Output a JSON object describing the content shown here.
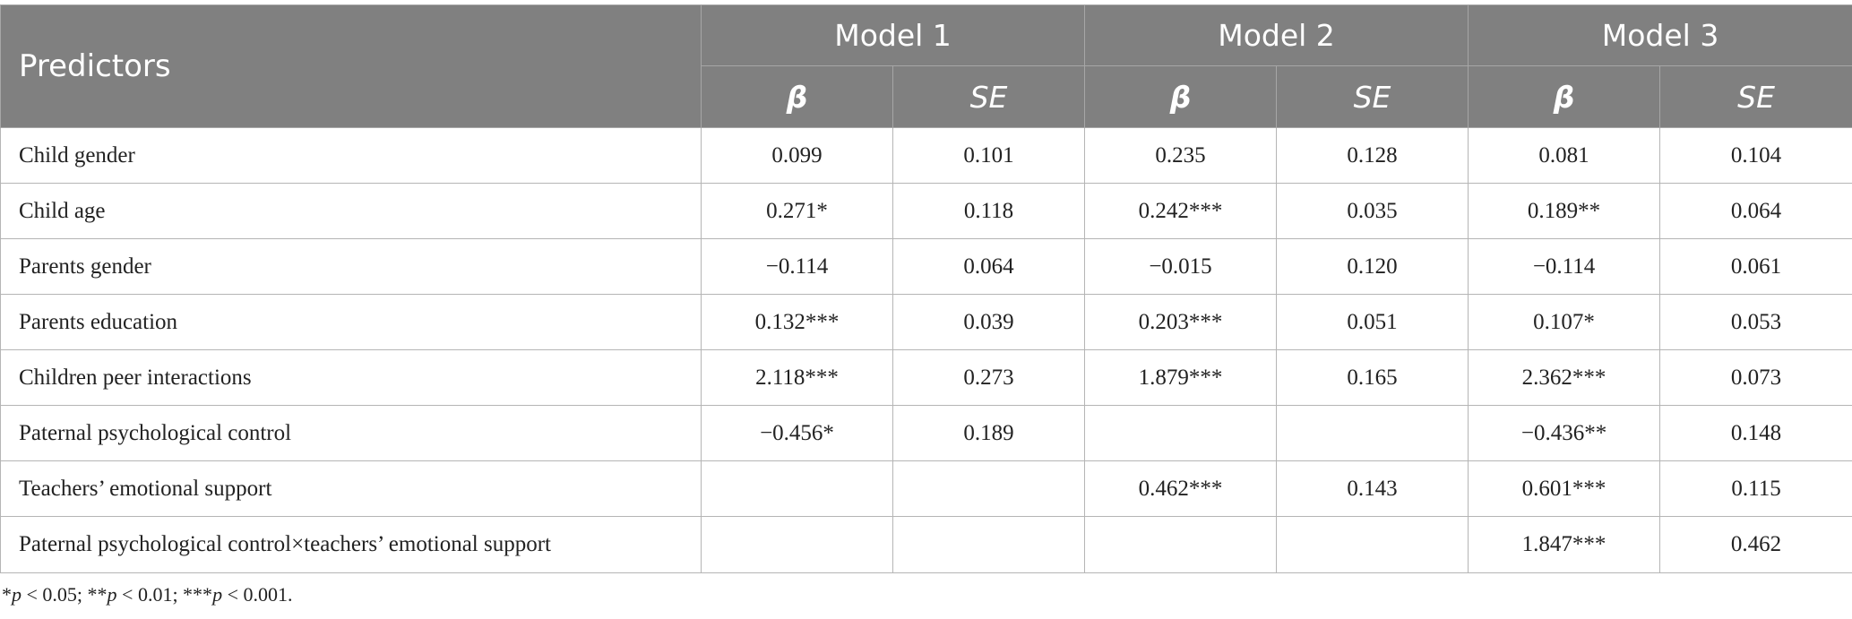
{
  "table": {
    "header": {
      "predictors_label": "Predictors",
      "models": [
        "Model 1",
        "Model 2",
        "Model 3"
      ],
      "beta_label": "β",
      "se_label": "SE"
    },
    "rows": [
      {
        "label": "Child gender",
        "cells": [
          "0.099",
          "0.101",
          "0.235",
          "0.128",
          "0.081",
          "0.104"
        ]
      },
      {
        "label": "Child age",
        "cells": [
          "0.271*",
          "0.118",
          "0.242***",
          "0.035",
          "0.189**",
          "0.064"
        ]
      },
      {
        "label": "Parents gender",
        "cells": [
          "−0.114",
          "0.064",
          "−0.015",
          "0.120",
          "−0.114",
          "0.061"
        ]
      },
      {
        "label": "Parents education",
        "cells": [
          "0.132***",
          "0.039",
          "0.203***",
          "0.051",
          "0.107*",
          "0.053"
        ]
      },
      {
        "label": "Children peer interactions",
        "cells": [
          "2.118***",
          "0.273",
          "1.879***",
          "0.165",
          "2.362***",
          "0.073"
        ]
      },
      {
        "label": "Paternal psychological control",
        "cells": [
          "−0.456*",
          "0.189",
          "",
          "",
          "−0.436**",
          "0.148"
        ]
      },
      {
        "label": "Teachers’ emotional support",
        "cells": [
          "",
          "",
          "0.462***",
          "0.143",
          "0.601***",
          "0.115"
        ]
      },
      {
        "label": "Paternal psychological control×teachers’ emotional support",
        "cells": [
          "",
          "",
          "",
          "",
          "1.847***",
          "0.462"
        ]
      }
    ]
  },
  "footnote": {
    "parts": [
      "*",
      "p",
      " < 0.05; **",
      "p",
      " < 0.01; ***",
      "p",
      " < 0.001."
    ]
  }
}
